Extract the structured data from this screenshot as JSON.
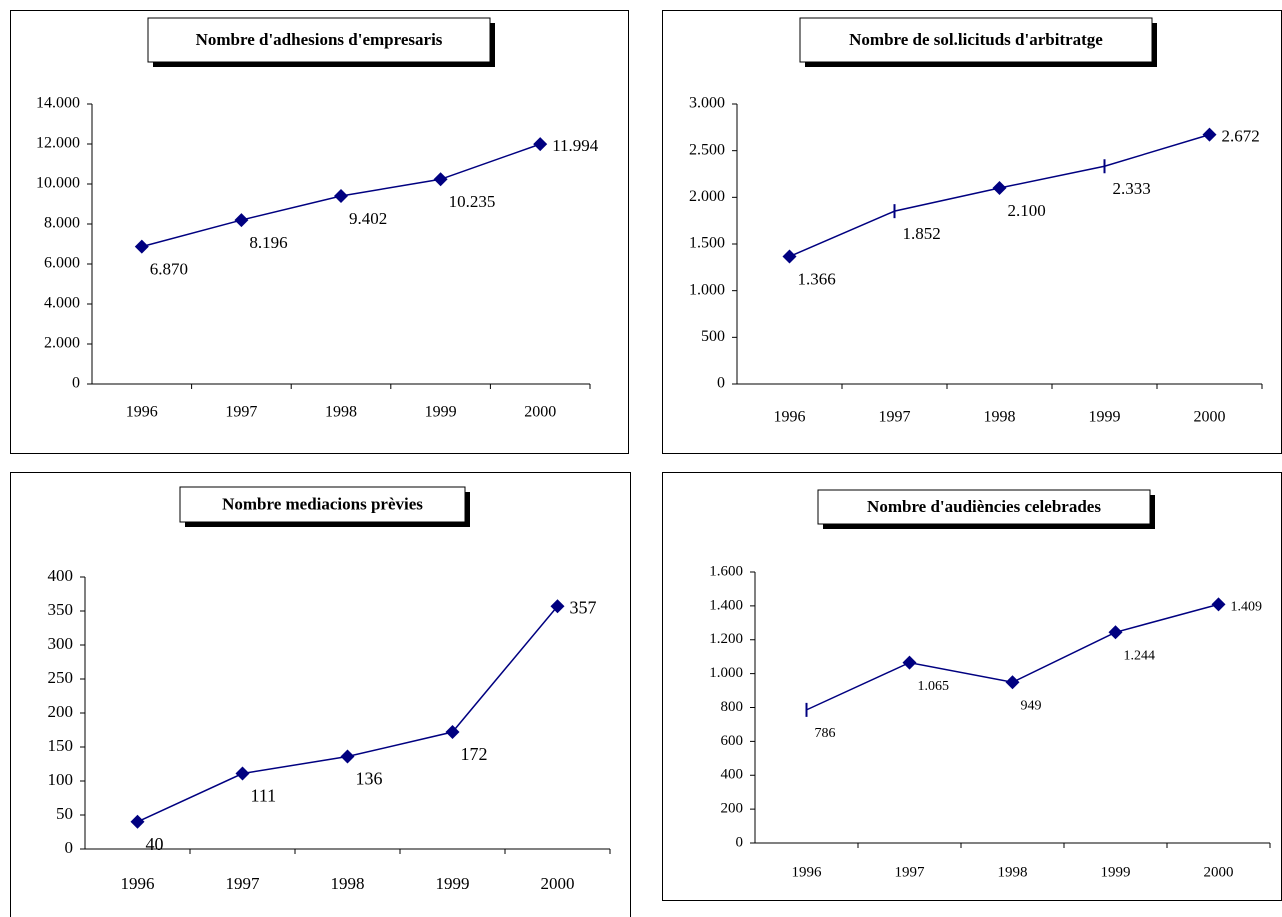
{
  "chart_data": [
    {
      "type": "line",
      "title": "Nombre d'adhesions d'empresaris",
      "categories": [
        "1996",
        "1997",
        "1998",
        "1999",
        "2000"
      ],
      "values": [
        6870,
        8196,
        9402,
        10235,
        11994
      ],
      "value_labels": [
        "6.870",
        "8.196",
        "9.402",
        "10.235",
        "11.994"
      ],
      "markers": [
        "diamond",
        "diamond",
        "diamond",
        "diamond",
        "diamond"
      ],
      "color": "#000080",
      "ylim": [
        0,
        14000
      ],
      "yticks": [
        0,
        {
          "value": 2000,
          "label": "2.000"
        },
        {
          "value": 4000,
          "label": "4.000"
        },
        {
          "value": 6000,
          "label": "6.000"
        },
        {
          "value": 8000,
          "label": "8.000"
        },
        {
          "value": 10000,
          "label": "10.000"
        },
        {
          "value": 12000,
          "label": "12.000"
        },
        {
          "value": 14000,
          "label": "14.000"
        }
      ]
    },
    {
      "type": "line",
      "title": "Nombre de sol.licituds d'arbitratge",
      "categories": [
        "1996",
        "1997",
        "1998",
        "1999",
        "2000"
      ],
      "values": [
        1366,
        1852,
        2100,
        2333,
        2672
      ],
      "value_labels": [
        "1.366",
        "1.852",
        "2.100",
        "2.333",
        "2.672"
      ],
      "markers": [
        "diamond",
        "tick",
        "diamond",
        "tick",
        "diamond"
      ],
      "color": "#000080",
      "ylim": [
        0,
        3000
      ],
      "yticks": [
        0,
        500,
        {
          "value": 1000,
          "label": "1.000"
        },
        {
          "value": 1500,
          "label": "1.500"
        },
        {
          "value": 2000,
          "label": "2.000"
        },
        {
          "value": 2500,
          "label": "2.500"
        },
        {
          "value": 3000,
          "label": "3.000"
        }
      ]
    },
    {
      "type": "line",
      "title": "Nombre mediacions prèvies",
      "categories": [
        "1996",
        "1997",
        "1998",
        "1999",
        "2000"
      ],
      "values": [
        40,
        111,
        136,
        172,
        357
      ],
      "markers": [
        "diamond",
        "diamond",
        "diamond",
        "diamond",
        "diamond"
      ],
      "color": "#000080",
      "ylim": [
        0,
        400
      ],
      "yticks": [
        0,
        50,
        100,
        150,
        200,
        250,
        300,
        350,
        400
      ]
    },
    {
      "type": "line",
      "title": "Nombre d'audiències celebrades",
      "categories": [
        "1996",
        "1997",
        "1998",
        "1999",
        "2000"
      ],
      "values": [
        786,
        1065,
        949,
        1244,
        1409
      ],
      "value_labels": [
        "786",
        "1.065",
        "949",
        "1.244",
        "1.409"
      ],
      "markers": [
        "tick",
        "diamond",
        "diamond",
        "diamond",
        "diamond"
      ],
      "color": "#000080",
      "ylim": [
        0,
        1600
      ],
      "yticks": [
        0,
        200,
        400,
        600,
        800,
        {
          "value": 1000,
          "label": "1.000"
        },
        {
          "value": 1200,
          "label": "1.200"
        },
        {
          "value": 1400,
          "label": "1.400"
        },
        {
          "value": 1600,
          "label": "1.600"
        }
      ]
    }
  ]
}
